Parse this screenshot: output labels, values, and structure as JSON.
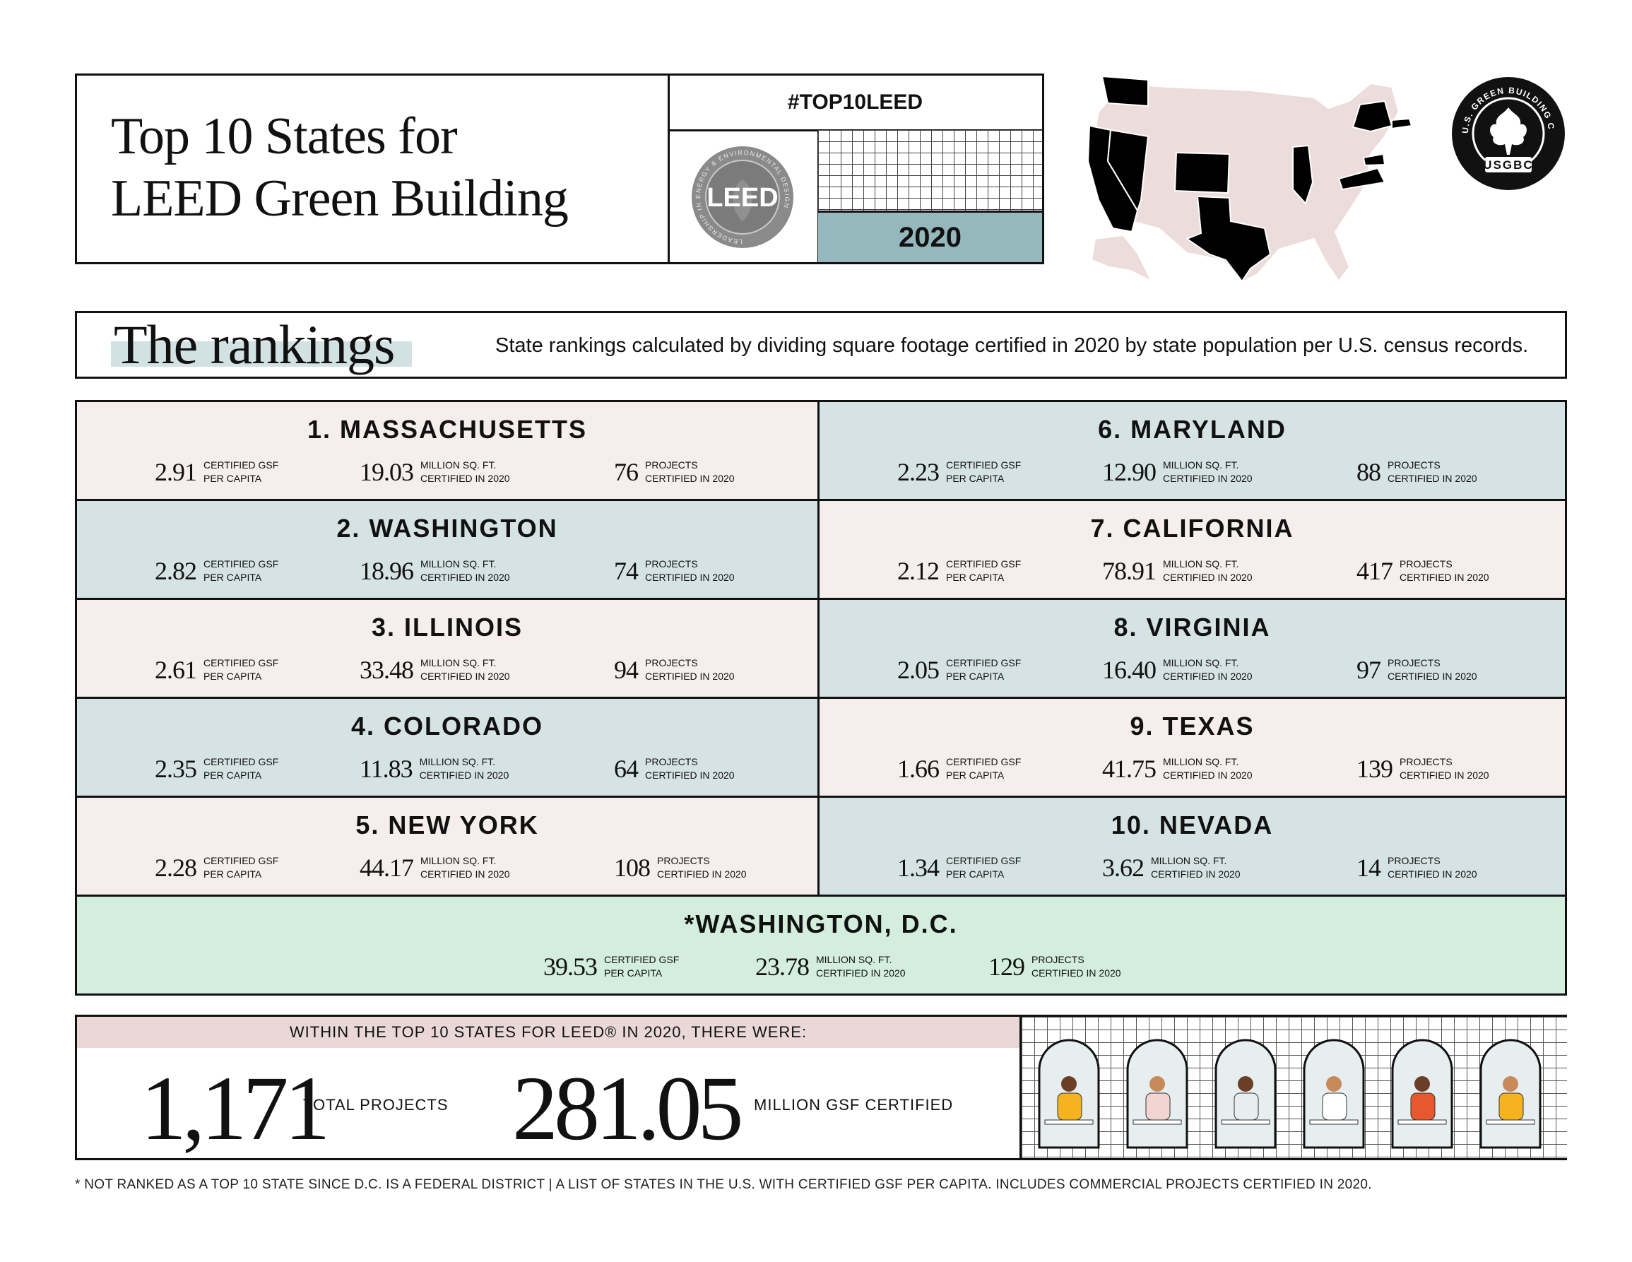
{
  "header": {
    "title_line1": "Top 10 States for",
    "title_line2": "LEED Green Building",
    "hashtag": "#TOP10LEED",
    "year": "2020",
    "leed_logo_text": "LEED",
    "leed_ring_text": "LEADERSHIP IN ENERGY & ENVIRONMENTAL DESIGN",
    "usgbc_ring_text": "U.S. GREEN BUILDING COUNCIL",
    "usgbc_text": "USGBC"
  },
  "colors": {
    "pink": "#f6eeec",
    "blue": "#d6e3e4",
    "mint": "#d3eedd",
    "teal_year": "#94b8bc",
    "map_land": "#ecdcdb",
    "map_highlight": "#000000"
  },
  "rankings": {
    "title": "The rankings",
    "description": "State rankings calculated by dividing square footage certified in 2020 by state population per U.S. census records.",
    "label_gsf": "CERTIFIED GSF",
    "label_gsf2": "PER CAPITA",
    "label_sqft": "MILLION SQ. FT.",
    "label_sqft2": "CERTIFIED IN 2020",
    "label_proj": "PROJECTS",
    "label_proj2": "CERTIFIED IN 2020",
    "states": [
      {
        "name": "1. MASSACHUSETTS",
        "gsf": "2.91",
        "sqft": "19.03",
        "projects": "76"
      },
      {
        "name": "2. WASHINGTON",
        "gsf": "2.82",
        "sqft": "18.96",
        "projects": "74"
      },
      {
        "name": "3. ILLINOIS",
        "gsf": "2.61",
        "sqft": "33.48",
        "projects": "94"
      },
      {
        "name": "4. COLORADO",
        "gsf": "2.35",
        "sqft": "11.83",
        "projects": "64"
      },
      {
        "name": "5. NEW YORK",
        "gsf": "2.28",
        "sqft": "44.17",
        "projects": "108"
      },
      {
        "name": "6. MARYLAND",
        "gsf": "2.23",
        "sqft": "12.90",
        "projects": "88"
      },
      {
        "name": "7. CALIFORNIA",
        "gsf": "2.12",
        "sqft": "78.91",
        "projects": "417"
      },
      {
        "name": "8. VIRGINIA",
        "gsf": "2.05",
        "sqft": "16.40",
        "projects": "97"
      },
      {
        "name": "9. TEXAS",
        "gsf": "1.66",
        "sqft": "41.75",
        "projects": "139"
      },
      {
        "name": "10. NEVADA",
        "gsf": "1.34",
        "sqft": "3.62",
        "projects": "14"
      }
    ],
    "dc": {
      "name": "*WASHINGTON, D.C.",
      "gsf": "39.53",
      "sqft": "23.78",
      "projects": "129"
    }
  },
  "summary": {
    "intro": "WITHIN THE TOP 10 STATES FOR LEED® IN 2020, THERE WERE:",
    "total_projects": "1,171",
    "total_projects_label": "TOTAL PROJECTS",
    "total_gsf": "281.05",
    "total_gsf_label": "MILLION GSF CERTIFIED"
  },
  "footnote": "* NOT RANKED AS A TOP 10 STATE SINCE D.C. IS A FEDERAL DISTRICT |  A LIST OF STATES IN THE U.S. WITH CERTIFIED GSF PER CAPITA. INCLUDES COMMERCIAL PROJECTS CERTIFIED IN 2020."
}
